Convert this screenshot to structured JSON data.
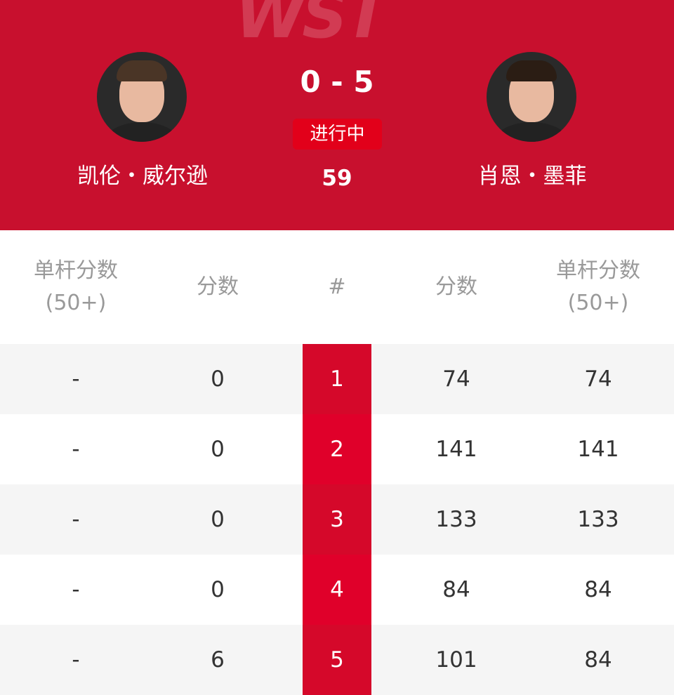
{
  "header": {
    "logo": "WST",
    "score": "0 - 5",
    "status": "进行中",
    "frame_score": "59",
    "left_player": {
      "name": "凯伦・威尔逊"
    },
    "right_player": {
      "name": "肖恩・墨菲"
    },
    "brand_color": "#c8102e"
  },
  "table": {
    "headers": [
      "单杆分数\n(50+)",
      "分数",
      "#",
      "分数",
      "单杆分数\n(50+)"
    ],
    "rows": [
      {
        "left_break": "-",
        "left_score": "0",
        "frame": "1",
        "right_score": "74",
        "right_break": "74"
      },
      {
        "left_break": "-",
        "left_score": "0",
        "frame": "2",
        "right_score": "141",
        "right_break": "141"
      },
      {
        "left_break": "-",
        "left_score": "0",
        "frame": "3",
        "right_score": "133",
        "right_break": "133"
      },
      {
        "left_break": "-",
        "left_score": "0",
        "frame": "4",
        "right_score": "84",
        "right_break": "84"
      },
      {
        "left_break": "-",
        "left_score": "6",
        "frame": "5",
        "right_score": "101",
        "right_break": "84"
      }
    ]
  }
}
